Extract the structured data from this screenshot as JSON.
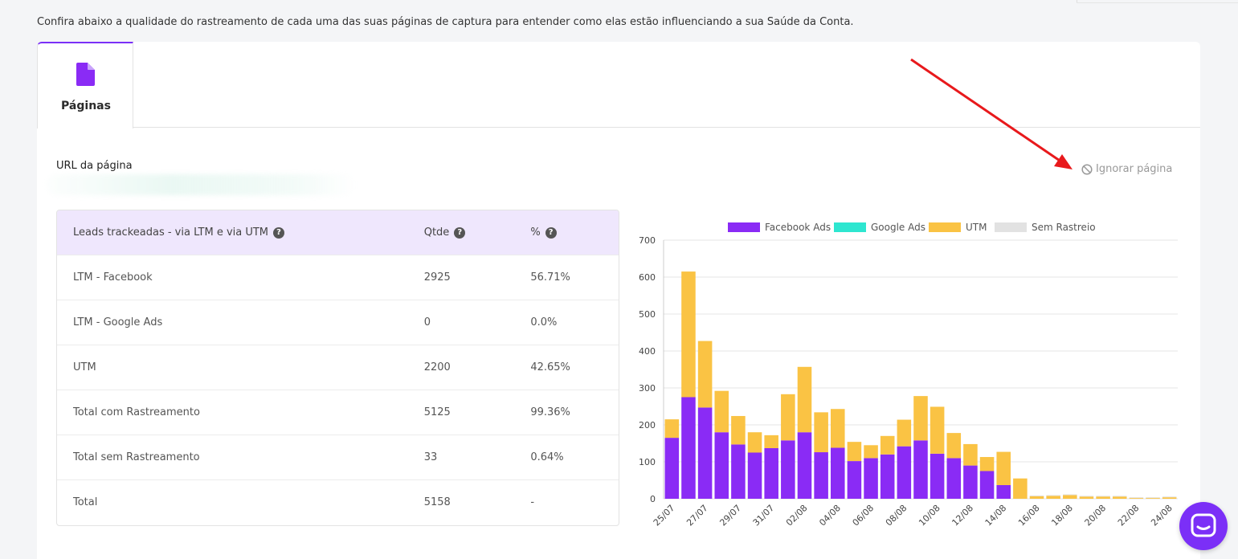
{
  "intro_text": "Confira abaixo a qualidade do rastreamento de cada uma das suas páginas de captura para entender como elas estão influenciando a sua Saúde da Conta.",
  "tabs": [
    {
      "label": "Páginas",
      "icon": "file-icon"
    }
  ],
  "url_label": "URL da página",
  "ignore_label": "Ignorar página",
  "table": {
    "headers": [
      "Leads trackeadas - via LTM e via UTM",
      "Qtde",
      "%"
    ],
    "rows": [
      {
        "label": "LTM - Facebook",
        "qtde": "2925",
        "pct": "56.71%"
      },
      {
        "label": "LTM - Google Ads",
        "qtde": "0",
        "pct": "0.0%"
      },
      {
        "label": "UTM",
        "qtde": "2200",
        "pct": "42.65%"
      },
      {
        "label": "Total com Rastreamento",
        "qtde": "5125",
        "pct": "99.36%"
      },
      {
        "label": "Total sem Rastreamento",
        "qtde": "33",
        "pct": "0.64%"
      },
      {
        "label": "Total",
        "qtde": "5158",
        "pct": "-"
      }
    ]
  },
  "colors": {
    "accent": "#7b2ff7",
    "facebook": "#8a2bf5",
    "google": "#2ee6d0",
    "utm": "#fac344",
    "sem": "#e2e2e2",
    "arrow": "#e8191c"
  },
  "chart_data": {
    "type": "bar",
    "stacked": true,
    "ylim": [
      0,
      700
    ],
    "yticks": [
      0,
      100,
      200,
      300,
      400,
      500,
      600,
      700
    ],
    "categories": [
      "25/07",
      "26/07",
      "27/07",
      "28/07",
      "29/07",
      "30/07",
      "31/07",
      "01/08",
      "02/08",
      "03/08",
      "04/08",
      "05/08",
      "06/08",
      "07/08",
      "08/08",
      "09/08",
      "10/08",
      "11/08",
      "12/08",
      "13/08",
      "14/08",
      "15/08",
      "16/08",
      "17/08",
      "18/08",
      "19/08",
      "20/08",
      "21/08",
      "22/08",
      "23/08",
      "24/08"
    ],
    "tick_labels": [
      "25/07",
      "27/07",
      "29/07",
      "31/07",
      "02/08",
      "04/08",
      "06/08",
      "08/08",
      "10/08",
      "12/08",
      "14/08",
      "16/08",
      "18/08",
      "20/08",
      "22/08",
      "24/08"
    ],
    "series": [
      {
        "name": "Facebook Ads",
        "values": [
          165,
          275,
          247,
          180,
          147,
          125,
          137,
          158,
          180,
          126,
          138,
          102,
          110,
          120,
          142,
          158,
          122,
          110,
          90,
          75,
          37,
          0,
          0,
          0,
          0,
          0,
          0,
          0,
          0,
          0,
          0
        ]
      },
      {
        "name": "Google Ads",
        "values": [
          0,
          0,
          0,
          0,
          0,
          0,
          0,
          0,
          0,
          0,
          0,
          0,
          0,
          0,
          0,
          0,
          0,
          0,
          0,
          0,
          0,
          0,
          0,
          0,
          0,
          0,
          0,
          0,
          0,
          0,
          0
        ]
      },
      {
        "name": "UTM",
        "values": [
          50,
          340,
          180,
          112,
          77,
          55,
          35,
          125,
          177,
          108,
          105,
          52,
          35,
          50,
          72,
          120,
          127,
          68,
          58,
          38,
          90,
          55,
          7,
          8,
          10,
          6,
          6,
          6,
          2,
          2,
          4
        ]
      },
      {
        "name": "Sem Rastreio",
        "values": [
          0,
          0,
          0,
          0,
          0,
          0,
          0,
          0,
          0,
          0,
          0,
          0,
          0,
          0,
          0,
          0,
          0,
          0,
          0,
          0,
          0,
          0,
          2,
          2,
          2,
          2,
          2,
          2,
          2,
          2,
          2
        ]
      }
    ]
  }
}
